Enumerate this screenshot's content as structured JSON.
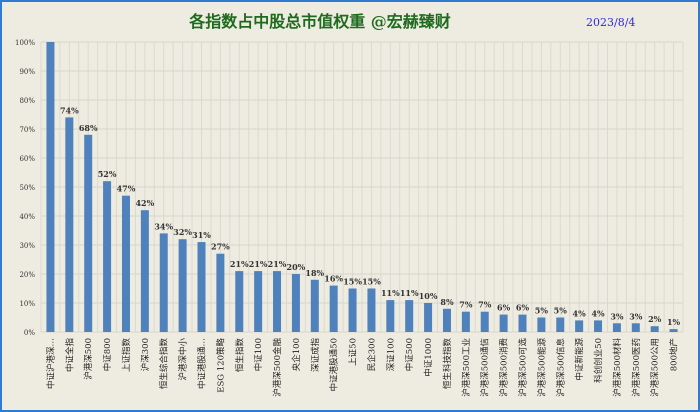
{
  "chart_data": {
    "type": "bar",
    "title": "各指数占中股总市值权重 @宏赫臻财",
    "date": "2023/8/4",
    "xlabel": "",
    "ylabel": "",
    "ylim": [
      0,
      100
    ],
    "yticks": [
      "0%",
      "10%",
      "20%",
      "30%",
      "40%",
      "50%",
      "60%",
      "70%",
      "80%",
      "90%",
      "100%"
    ],
    "grid": true,
    "bar_color": "#4f81bd",
    "categories": [
      "中证沪港深…",
      "中证全指",
      "沪港深500",
      "中证800",
      "上证指数",
      "沪深300",
      "恒生综合指数",
      "沪港深中小",
      "中证港股通…",
      "ESG 120策略",
      "恒生指数",
      "中证100",
      "沪港深500金融",
      "央企100",
      "深证成指",
      "中证港股通50",
      "上证50",
      "民企300",
      "深证100",
      "中证500",
      "中证1000",
      "恒生科技指数",
      "沪港深500工业",
      "沪港深500通信",
      "沪港深500消费",
      "沪港深500可选",
      "沪港深500能源",
      "沪港深500信息",
      "中证新能源",
      "科创创业50",
      "沪港深500材料",
      "沪港深500医药",
      "沪港深500公用",
      "800地产"
    ],
    "values": [
      100,
      74,
      68,
      52,
      47,
      42,
      34,
      32,
      31,
      27,
      21,
      21,
      21,
      20,
      18,
      16,
      15,
      15,
      11,
      11,
      10,
      8,
      7,
      7,
      6,
      6,
      5,
      5,
      4,
      4,
      3,
      3,
      2,
      1
    ],
    "data_labels": [
      "",
      "74%",
      "68%",
      "52%",
      "47%",
      "42%",
      "34%",
      "32%",
      "31%",
      "27%",
      "21%",
      "21%",
      "21%",
      "20%",
      "18%",
      "16%",
      "15%",
      "15%",
      "11%",
      "11%",
      "10%",
      "8%",
      "7%",
      "7%",
      "6%",
      "6%",
      "5%",
      "5%",
      "4%",
      "4%",
      "3%",
      "3%",
      "2%",
      "1%"
    ]
  }
}
